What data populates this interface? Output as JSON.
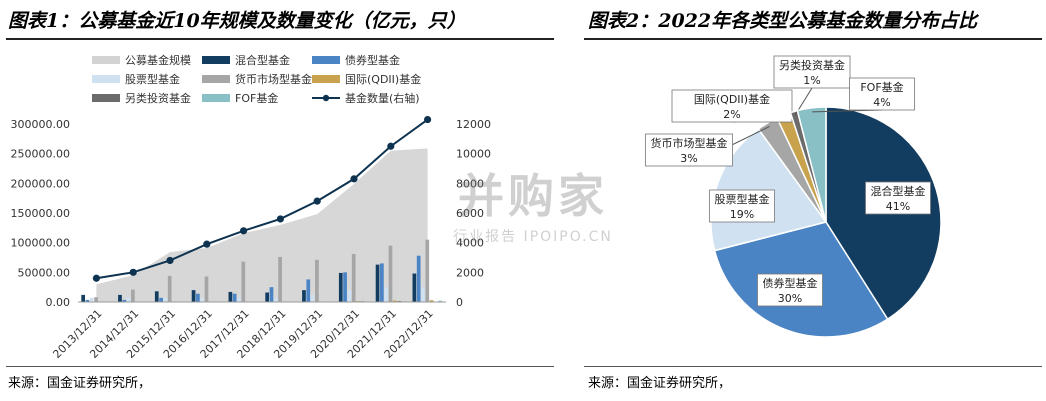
{
  "left_title": "图表1：公募基金近10年规模及数量变化（亿元，只）",
  "right_title": "图表2：2022年各类型公募基金数量分布占比",
  "left_source": "来源：国金证券研究所，",
  "right_source": "来源：国金证券研究所，",
  "watermark": {
    "main": "并购家",
    "sub": "行业报告 IPOIPO.CN"
  },
  "chart_data": [
    {
      "type": "bar",
      "categories": [
        "2013/12/31",
        "2014/12/31",
        "2015/12/31",
        "2016/12/31",
        "2017/12/31",
        "2018/12/31",
        "2019/12/31",
        "2020/12/31",
        "2021/12/31",
        "2022/12/31"
      ],
      "y_left_ticks": [
        "0.00",
        "50000.00",
        "100000.00",
        "150000.00",
        "200000.00",
        "250000.00",
        "300000.00"
      ],
      "y_right_ticks": [
        "0",
        "2000",
        "4000",
        "6000",
        "8000",
        "10000",
        "12000"
      ],
      "ylim_left": [
        0,
        300000
      ],
      "ylim_right": [
        0,
        12000
      ],
      "area_series": {
        "name": "公募基金规模",
        "color": "#d3d3d3",
        "values": [
          30000,
          45000,
          84000,
          91000,
          116000,
          130000,
          148000,
          199000,
          255000,
          259000
        ]
      },
      "bar_series": [
        {
          "name": "混合型基金",
          "color": "#123d60",
          "values": [
            12000,
            12000,
            18000,
            20000,
            17000,
            16000,
            20000,
            49000,
            63000,
            48000
          ]
        },
        {
          "name": "债券型基金",
          "color": "#4a84c4",
          "values": [
            3500,
            3500,
            7000,
            14000,
            14000,
            25000,
            38000,
            50000,
            65000,
            78000
          ]
        },
        {
          "name": "股票型基金",
          "color": "#cfe0f0",
          "values": [
            7000,
            8000,
            7000,
            7000,
            7500,
            7000,
            12000,
            20000,
            25000,
            25000
          ]
        },
        {
          "name": "货币市场型基金",
          "color": "#a6a6a6",
          "values": [
            8000,
            21000,
            44000,
            43000,
            68000,
            76000,
            71000,
            81000,
            95000,
            105000
          ]
        },
        {
          "name": "国际(QDII)基金",
          "color": "#c8a24c",
          "values": [
            700,
            700,
            900,
            800,
            900,
            800,
            900,
            1500,
            2500,
            3000
          ]
        },
        {
          "name": "另类投资基金",
          "color": "#6b6b6b",
          "values": [
            0,
            0,
            300,
            300,
            300,
            300,
            300,
            1200,
            1500,
            500
          ]
        },
        {
          "name": "FOF基金",
          "color": "#88c0c6",
          "values": [
            0,
            0,
            0,
            0,
            150,
            300,
            500,
            700,
            1000,
            2200
          ]
        }
      ],
      "line_series": {
        "name": "基金数量(右轴)",
        "color": "#0e3350",
        "values": [
          1600,
          2000,
          2800,
          3900,
          4800,
          5600,
          6800,
          8300,
          10500,
          12300
        ]
      }
    },
    {
      "type": "pie",
      "slices": [
        {
          "name": "混合型基金",
          "value": 41,
          "label": "41%",
          "color": "#123d60"
        },
        {
          "name": "债券型基金",
          "value": 30,
          "label": "30%",
          "color": "#4a84c4"
        },
        {
          "name": "股票型基金",
          "value": 19,
          "label": "19%",
          "color": "#d0e2f2"
        },
        {
          "name": "货币市场型基金",
          "value": 3,
          "label": "3%",
          "color": "#a6a6a6"
        },
        {
          "name": "国际(QDII)基金",
          "value": 2,
          "label": "2%",
          "color": "#c8a24c"
        },
        {
          "name": "另类投资基金",
          "value": 1,
          "label": "1%",
          "color": "#6b6b6b"
        },
        {
          "name": "FOF基金",
          "value": 4,
          "label": "4%",
          "color": "#88c0c6"
        }
      ]
    }
  ]
}
